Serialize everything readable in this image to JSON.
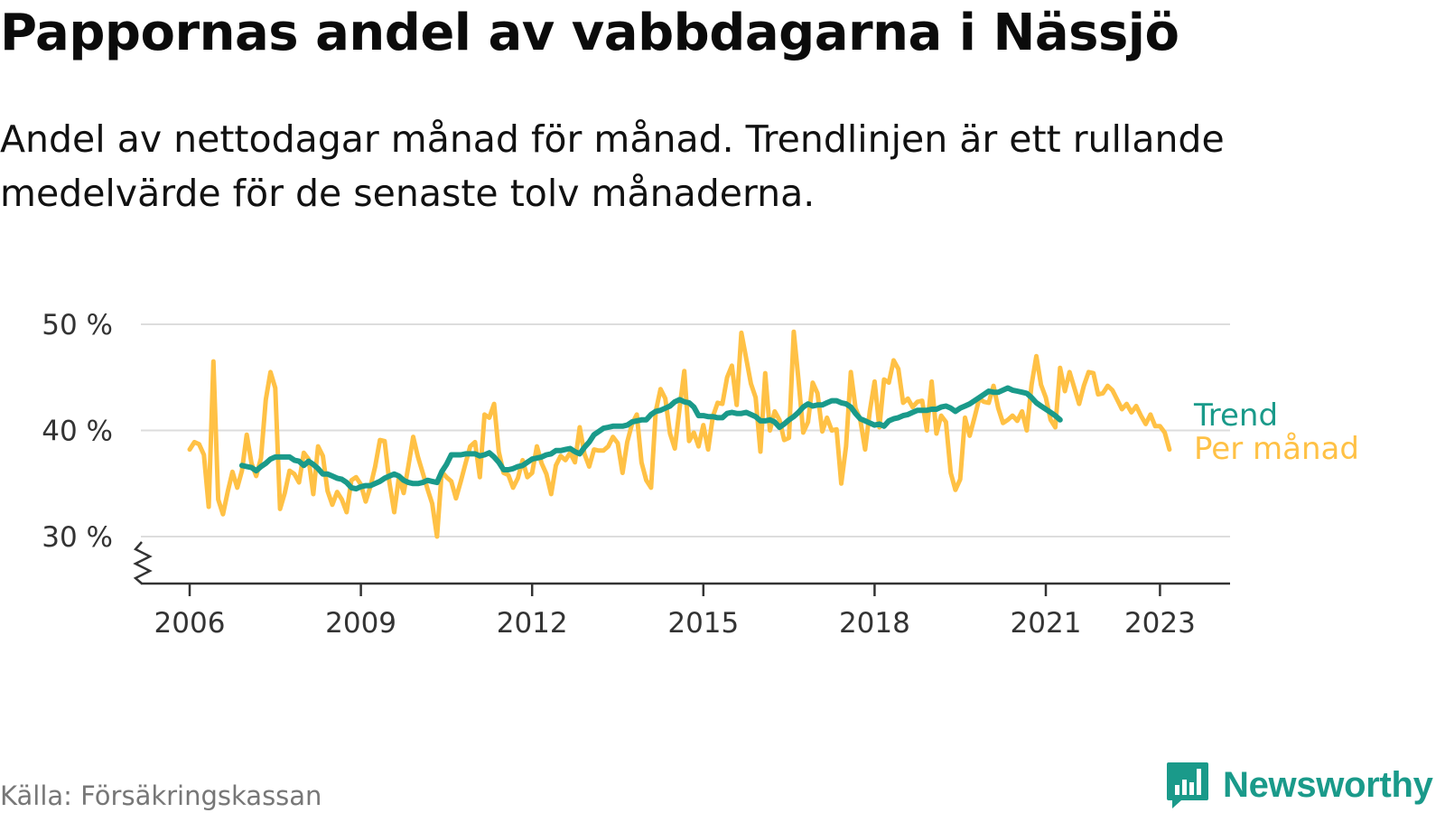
{
  "title": "Pappornas andel av vabbdagarna i Nässjö",
  "subtitle": "Andel av nettodagar månad för månad. Trendlinjen är ett rullande medelvärde för de senaste tolv månaderna.",
  "source": "Källa: Försäkringskassan",
  "brand": {
    "name": "Newsworthy",
    "logo_icon": "bar-chart-badge-icon",
    "color": "#1a9a8a"
  },
  "colors": {
    "monthly": "#ffc145",
    "trend": "#1a9a8a",
    "grid": "#dddddd",
    "axis": "#333333"
  },
  "chart_data": {
    "type": "line",
    "title": "Pappornas andel av vabbdagarna i Nässjö",
    "xlabel": "",
    "ylabel": "",
    "x_start": "2006-01",
    "x_frequency": "monthly",
    "x_ticks": [
      "2006",
      "2009",
      "2012",
      "2015",
      "2018",
      "2021",
      "2023"
    ],
    "y_ticks": [
      "30 %",
      "40 %",
      "50 %"
    ],
    "ylim": [
      30,
      50
    ],
    "y_axis_break": true,
    "grid": "horizontal",
    "legend": "direct-labels-right",
    "series": [
      {
        "name": "Per månad",
        "color": "#ffc145",
        "values": [
          38.2,
          38.9,
          38.7,
          37.7,
          32.8,
          46.5,
          33.5,
          32.1,
          34.2,
          36.1,
          34.6,
          36.2,
          39.6,
          36.9,
          35.7,
          37.4,
          42.9,
          45.5,
          44.0,
          32.6,
          34.1,
          36.2,
          35.9,
          35.1,
          37.9,
          37.3,
          34.0,
          38.5,
          37.6,
          34.3,
          33.0,
          34.2,
          33.5,
          32.3,
          35.3,
          35.6,
          34.9,
          33.3,
          34.7,
          36.6,
          39.1,
          39.0,
          35.1,
          32.3,
          35.6,
          34.1,
          36.7,
          39.4,
          37.5,
          36.0,
          34.5,
          33.1,
          30.0,
          36.1,
          35.6,
          35.2,
          33.6,
          35.2,
          36.9,
          38.5,
          38.9,
          35.6,
          41.5,
          41.2,
          42.5,
          38.0,
          36.0,
          35.8,
          34.6,
          35.5,
          37.2,
          35.6,
          36.0,
          38.5,
          36.9,
          35.9,
          34.0,
          36.7,
          37.6,
          37.2,
          37.9,
          37.0,
          40.3,
          37.8,
          36.6,
          38.2,
          38.1,
          38.1,
          38.5,
          39.4,
          38.8,
          36.0,
          38.9,
          40.6,
          41.5,
          37.0,
          35.3,
          34.6,
          41.8,
          43.9,
          43.0,
          39.7,
          38.3,
          42.1,
          45.6,
          39.0,
          39.8,
          38.5,
          40.5,
          38.2,
          41.3,
          42.6,
          42.5,
          45.0,
          46.1,
          42.4,
          49.2,
          46.8,
          44.4,
          43.1,
          38.0,
          45.4,
          40.0,
          41.8,
          41.0,
          39.1,
          39.3,
          49.3,
          44.8,
          39.8,
          40.8,
          44.5,
          43.5,
          39.9,
          41.2,
          40.0,
          40.1,
          35.0,
          38.5,
          45.5,
          42.1,
          41.0,
          38.2,
          41.8,
          44.6,
          40.3,
          44.8,
          44.5,
          46.6,
          45.8,
          42.6,
          43.0,
          42.2,
          42.7,
          42.8,
          40.0,
          44.6,
          39.7,
          41.4,
          40.8,
          36.0,
          34.4,
          35.4,
          41.2,
          39.5,
          41.2,
          43.0,
          42.7,
          42.6,
          44.2,
          42.1,
          40.7,
          41.0,
          41.4,
          40.9,
          41.8,
          40.0,
          44.3,
          47.0,
          44.3,
          43.1,
          41.0,
          40.3,
          45.9,
          43.7,
          45.5,
          44.0,
          42.5,
          44.2,
          45.5,
          45.4,
          43.4,
          43.5,
          44.2,
          43.8,
          42.9,
          42.0,
          42.5,
          41.7,
          42.3,
          41.4,
          40.6,
          41.5,
          40.4,
          40.4,
          39.8,
          38.2
        ]
      },
      {
        "name": "Trend",
        "color": "#1a9a8a",
        "start": "2006-12",
        "values": [
          36.7,
          36.6,
          36.5,
          36.2,
          36.6,
          36.9,
          37.3,
          37.5,
          37.5,
          37.5,
          37.5,
          37.2,
          37.1,
          36.7,
          37.1,
          36.8,
          36.4,
          35.9,
          35.9,
          35.7,
          35.5,
          35.4,
          35.1,
          34.6,
          34.5,
          34.7,
          34.8,
          34.8,
          35.0,
          35.2,
          35.5,
          35.7,
          35.9,
          35.7,
          35.3,
          35.1,
          35.0,
          35.0,
          35.1,
          35.3,
          35.2,
          35.1,
          36.1,
          36.8,
          37.7,
          37.7,
          37.7,
          37.8,
          37.8,
          37.8,
          37.6,
          37.7,
          37.9,
          37.5,
          37.0,
          36.3,
          36.3,
          36.4,
          36.6,
          36.7,
          37.0,
          37.3,
          37.4,
          37.5,
          37.7,
          37.8,
          38.1,
          38.1,
          38.2,
          38.3,
          38.0,
          37.8,
          38.4,
          38.9,
          39.6,
          39.9,
          40.2,
          40.3,
          40.4,
          40.4,
          40.4,
          40.5,
          40.8,
          40.9,
          41.0,
          41.0,
          41.5,
          41.8,
          41.9,
          42.1,
          42.3,
          42.7,
          42.9,
          42.7,
          42.6,
          42.2,
          41.4,
          41.4,
          41.3,
          41.3,
          41.2,
          41.2,
          41.6,
          41.7,
          41.6,
          41.6,
          41.7,
          41.5,
          41.3,
          40.9,
          40.9,
          41.0,
          40.8,
          40.3,
          40.6,
          41.0,
          41.3,
          41.7,
          42.2,
          42.5,
          42.3,
          42.4,
          42.4,
          42.6,
          42.8,
          42.8,
          42.6,
          42.5,
          42.2,
          41.6,
          41.1,
          40.9,
          40.7,
          40.5,
          40.6,
          40.4,
          40.9,
          41.1,
          41.2,
          41.4,
          41.5,
          41.7,
          41.9,
          41.9,
          41.9,
          42.0,
          42.0,
          42.2,
          42.3,
          42.1,
          41.8,
          42.1,
          42.3,
          42.5,
          42.8,
          43.1,
          43.4,
          43.7,
          43.6,
          43.6,
          43.8,
          44.0,
          43.8,
          43.7,
          43.6,
          43.5,
          43.1,
          42.6,
          42.3,
          42.0,
          41.7,
          41.4,
          41.0
        ]
      }
    ]
  }
}
